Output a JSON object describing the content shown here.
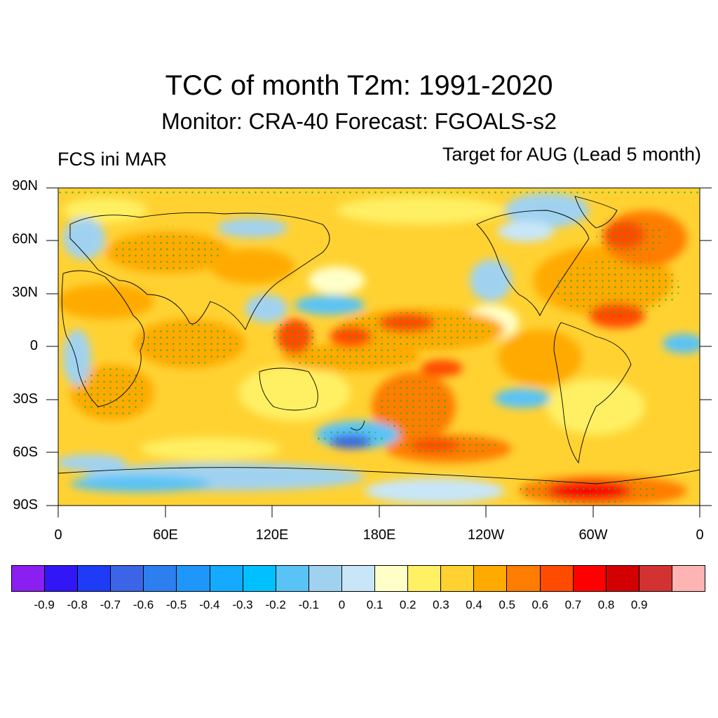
{
  "title": "TCC of month T2m: 1991-2020",
  "subtitle": "Monitor: CRA-40   Forecast: FGOALS-s2",
  "left_label": "FCS ini MAR",
  "right_label": "Target for AUG (Lead 5 month)",
  "lat_labels": [
    "90N",
    "60N",
    "30N",
    "0",
    "30S",
    "60S",
    "90S"
  ],
  "lon_labels": [
    "0",
    "60E",
    "120E",
    "180E",
    "120W",
    "60W",
    "0"
  ],
  "colorbar": {
    "colors": [
      "#8b1ef0",
      "#3216f5",
      "#1e3cf5",
      "#3c64e6",
      "#2d7ff0",
      "#1e96fa",
      "#14aaff",
      "#00c0ff",
      "#5ac3f5",
      "#a0d2f0",
      "#c8e6f8",
      "#ffffc8",
      "#fff064",
      "#ffd232",
      "#ffaa00",
      "#ff7d00",
      "#ff4b00",
      "#ff0000",
      "#d20000",
      "#d23232",
      "#ffb4b4"
    ],
    "labels": [
      "-0.9",
      "-0.8",
      "-0.7",
      "-0.6",
      "-0.5",
      "-0.4",
      "-0.3",
      "-0.2",
      "-0.1",
      "0",
      "0.1",
      "0.2",
      "0.3",
      "0.4",
      "0.5",
      "0.6",
      "0.7",
      "0.8",
      "0.9"
    ]
  }
}
